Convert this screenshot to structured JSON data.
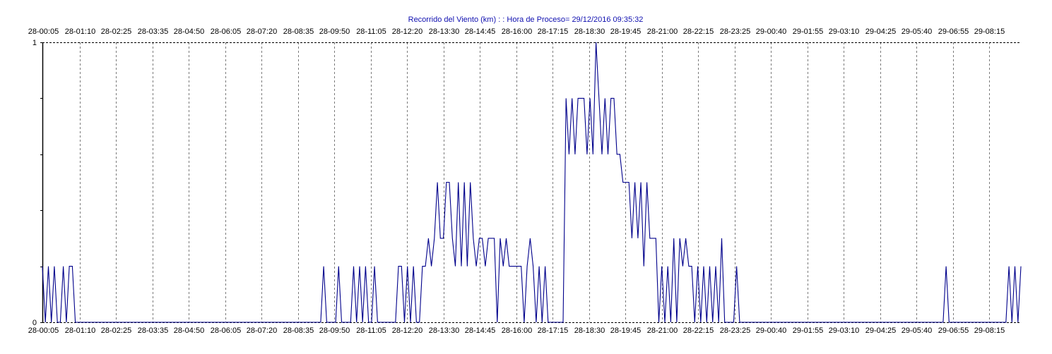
{
  "chart_data": {
    "type": "line",
    "title": "Recorrido del Viento (km) : : Hora de Proceso= 29/12/2016 09:35:32",
    "xlabel": "",
    "ylabel": "",
    "ylim": [
      0,
      1
    ],
    "y_ticks": [
      "0",
      "1"
    ],
    "grid": true,
    "legend": "none",
    "x_ticks": [
      "28-00:05",
      "28-01:10",
      "28-02:25",
      "28-03:35",
      "28-04:50",
      "28-06:05",
      "28-07:20",
      "28-08:35",
      "28-09:50",
      "28-11:05",
      "28-12:20",
      "28-13:30",
      "28-14:45",
      "28-16:00",
      "28-17:15",
      "28-18:30",
      "28-19:45",
      "28-21:00",
      "28-22:15",
      "28-23:25",
      "29-00:40",
      "29-01:55",
      "29-03:10",
      "29-04:25",
      "29-05:40",
      "29-06:55",
      "29-08:15"
    ],
    "series": [
      {
        "color": "#00008b",
        "values": [
          0.2,
          0,
          0.2,
          0,
          0.2,
          0,
          0,
          0.2,
          0,
          0.2,
          0.2,
          0,
          0,
          0,
          0,
          0,
          0,
          0,
          0,
          0,
          0,
          0,
          0,
          0,
          0,
          0,
          0,
          0,
          0,
          0,
          0,
          0,
          0,
          0,
          0,
          0,
          0,
          0,
          0,
          0,
          0,
          0,
          0,
          0,
          0,
          0,
          0,
          0,
          0,
          0,
          0,
          0,
          0,
          0,
          0,
          0,
          0,
          0,
          0,
          0,
          0,
          0,
          0,
          0,
          0,
          0,
          0,
          0,
          0,
          0,
          0,
          0,
          0,
          0,
          0,
          0,
          0,
          0,
          0,
          0,
          0,
          0,
          0,
          0,
          0,
          0,
          0,
          0,
          0,
          0,
          0,
          0,
          0,
          0,
          0.2,
          0,
          0,
          0,
          0,
          0.2,
          0,
          0,
          0,
          0,
          0.2,
          0,
          0.2,
          0,
          0.2,
          0,
          0,
          0.2,
          0,
          0,
          0,
          0,
          0,
          0,
          0,
          0.2,
          0.2,
          0,
          0.2,
          0,
          0.2,
          0,
          0,
          0.2,
          0.2,
          0.3,
          0.2,
          0.3,
          0.5,
          0.3,
          0.3,
          0.5,
          0.5,
          0.3,
          0.2,
          0.5,
          0.2,
          0.5,
          0.2,
          0.5,
          0.3,
          0.2,
          0.3,
          0.3,
          0.2,
          0.3,
          0.3,
          0.3,
          0,
          0.3,
          0.2,
          0.3,
          0.2,
          0.2,
          0.2,
          0.2,
          0.2,
          0,
          0.2,
          0.3,
          0.2,
          0,
          0.2,
          0,
          0.2,
          0,
          0,
          0,
          0,
          0,
          0,
          0.8,
          0.6,
          0.8,
          0.6,
          0.8,
          0.8,
          0.8,
          0.6,
          0.8,
          0.6,
          1,
          0.8,
          0.6,
          0.8,
          0.6,
          0.8,
          0.8,
          0.6,
          0.6,
          0.5,
          0.5,
          0.5,
          0.3,
          0.5,
          0.3,
          0.5,
          0.2,
          0.5,
          0.3,
          0.3,
          0.3,
          0,
          0.2,
          0,
          0.2,
          0,
          0.3,
          0,
          0.3,
          0.2,
          0.3,
          0.2,
          0.2,
          0,
          0.2,
          0,
          0.2,
          0,
          0.2,
          0,
          0.2,
          0,
          0.3,
          0,
          0,
          0,
          0,
          0.2,
          0,
          0,
          0,
          0,
          0,
          0,
          0,
          0,
          0,
          0,
          0,
          0,
          0,
          0,
          0,
          0,
          0,
          0,
          0,
          0,
          0,
          0,
          0,
          0,
          0,
          0,
          0,
          0,
          0,
          0,
          0,
          0,
          0,
          0,
          0,
          0,
          0,
          0,
          0,
          0,
          0,
          0,
          0,
          0,
          0,
          0,
          0,
          0,
          0,
          0,
          0,
          0,
          0,
          0,
          0,
          0,
          0,
          0,
          0,
          0,
          0,
          0,
          0,
          0,
          0,
          0,
          0,
          0,
          0,
          0.2,
          0,
          0,
          0,
          0,
          0,
          0,
          0,
          0,
          0,
          0,
          0,
          0,
          0,
          0,
          0,
          0,
          0,
          0,
          0,
          0,
          0.2,
          0,
          0.2,
          0,
          0.2
        ]
      }
    ]
  }
}
